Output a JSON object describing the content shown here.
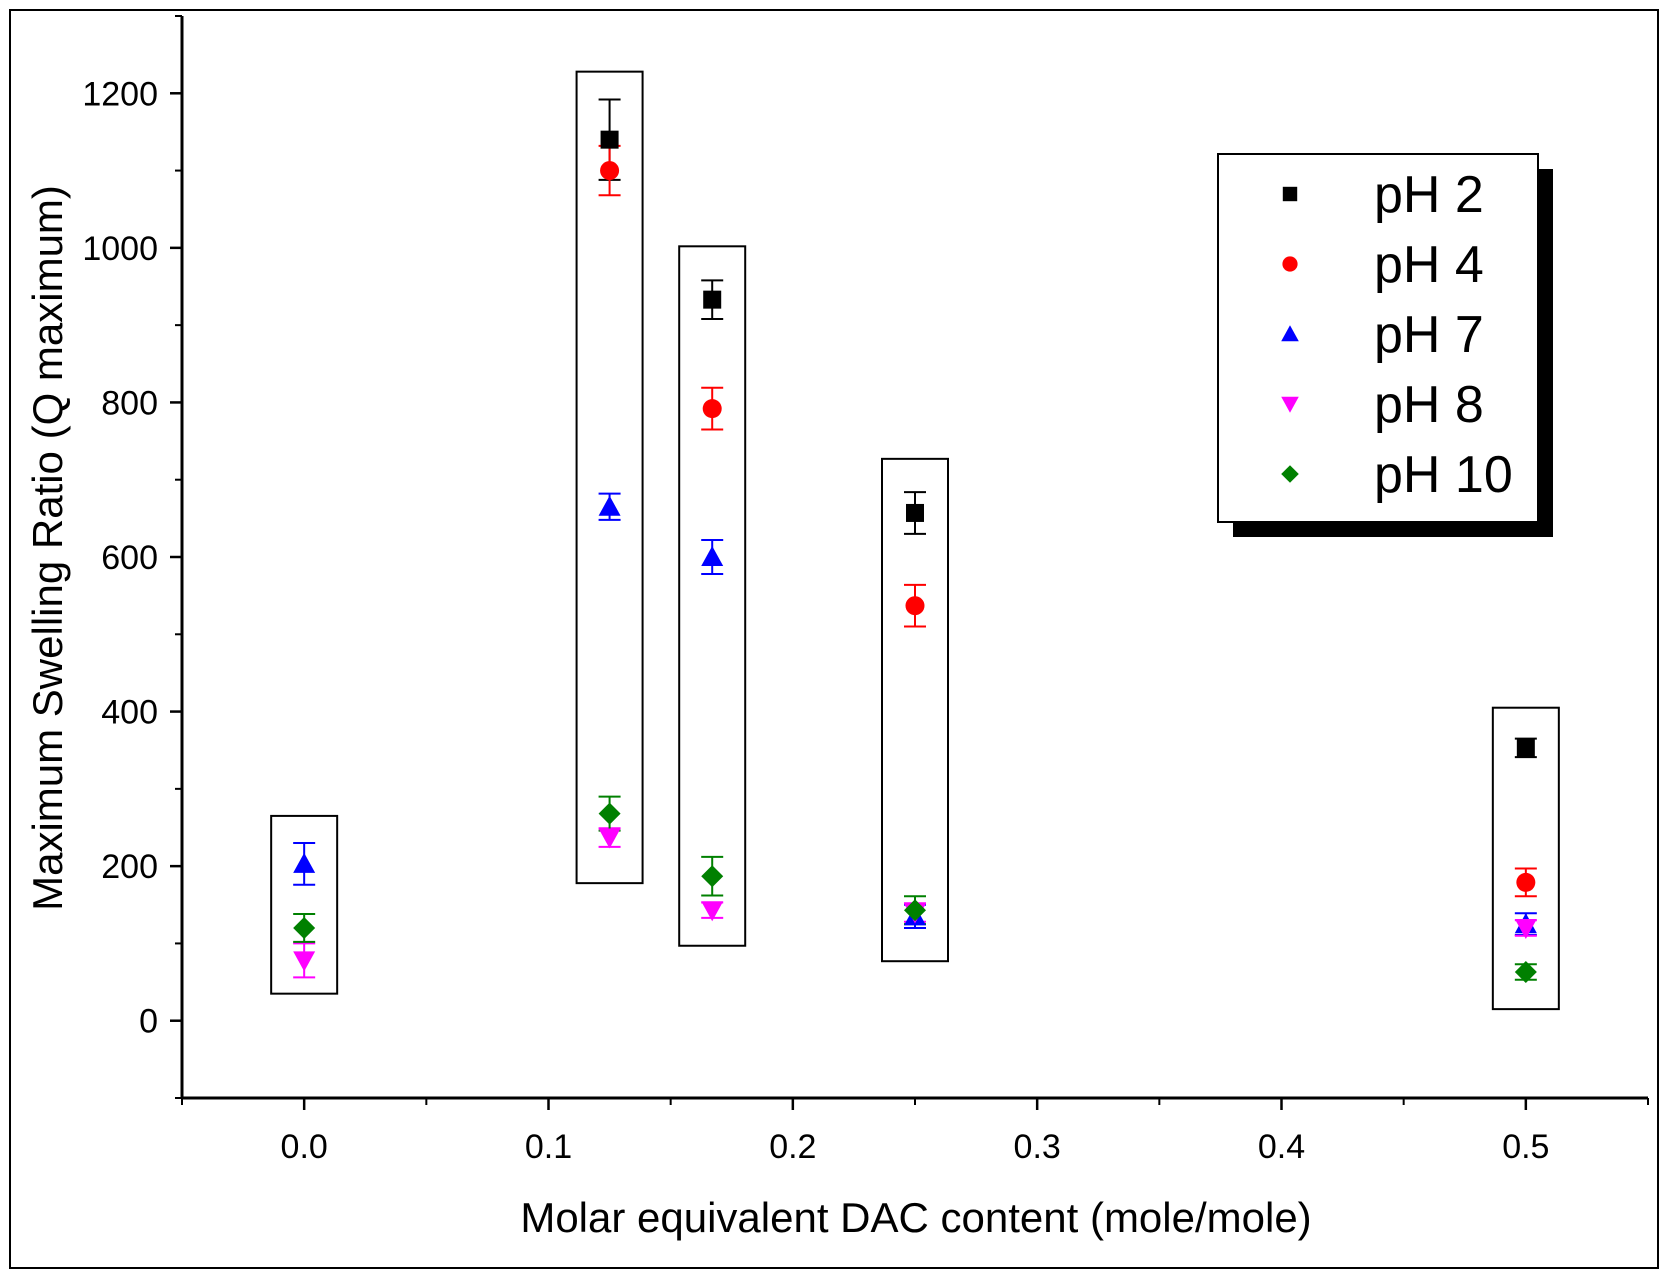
{
  "chart_data": {
    "type": "scatter",
    "xlabel": "Molar equivalent DAC content (mole/mole)",
    "ylabel": "Maximum Swelling Ratio (Q maximum)",
    "xlim": [
      -0.05,
      0.55
    ],
    "ylim": [
      -100,
      1300
    ],
    "x_ticks": [
      {
        "value": 0.0,
        "label": "0.0"
      },
      {
        "value": 0.1,
        "label": "0.1"
      },
      {
        "value": 0.2,
        "label": "0.2"
      },
      {
        "value": 0.3,
        "label": "0.3"
      },
      {
        "value": 0.4,
        "label": "0.4"
      },
      {
        "value": 0.5,
        "label": "0.5"
      }
    ],
    "y_ticks": [
      {
        "value": 0,
        "label": "0"
      },
      {
        "value": 200,
        "label": "200"
      },
      {
        "value": 400,
        "label": "400"
      },
      {
        "value": 600,
        "label": "600"
      },
      {
        "value": 800,
        "label": "800"
      },
      {
        "value": 1000,
        "label": "1000"
      },
      {
        "value": 1200,
        "label": "1200"
      }
    ],
    "series": [
      {
        "name": "pH 2",
        "marker": "square",
        "color": "#000000",
        "points": [
          {
            "x": 0.125,
            "y": 1140,
            "err": 52
          },
          {
            "x": 0.167,
            "y": 933,
            "err": 25
          },
          {
            "x": 0.25,
            "y": 657,
            "err": 27
          },
          {
            "x": 0.5,
            "y": 353,
            "err": 12
          }
        ]
      },
      {
        "name": "pH 4",
        "marker": "circle",
        "color": "#ff0000",
        "points": [
          {
            "x": 0.125,
            "y": 1100,
            "err": 32
          },
          {
            "x": 0.167,
            "y": 792,
            "err": 27
          },
          {
            "x": 0.25,
            "y": 537,
            "err": 27
          },
          {
            "x": 0.5,
            "y": 179,
            "err": 18
          }
        ]
      },
      {
        "name": "pH 7",
        "marker": "triangle-up",
        "color": "#0000ff",
        "points": [
          {
            "x": 0.0,
            "y": 203,
            "err": 27
          },
          {
            "x": 0.125,
            "y": 665,
            "err": 17
          },
          {
            "x": 0.167,
            "y": 600,
            "err": 22
          },
          {
            "x": 0.25,
            "y": 135,
            "err": 15
          },
          {
            "x": 0.5,
            "y": 125,
            "err": 14
          }
        ]
      },
      {
        "name": "pH 8",
        "marker": "triangle-down",
        "color": "#ff00ff",
        "points": [
          {
            "x": 0.0,
            "y": 78,
            "err": 22
          },
          {
            "x": 0.125,
            "y": 237,
            "err": 12
          },
          {
            "x": 0.167,
            "y": 143,
            "err": 10
          },
          {
            "x": 0.25,
            "y": 140,
            "err": 12
          },
          {
            "x": 0.5,
            "y": 120,
            "err": 10
          }
        ]
      },
      {
        "name": "pH 10",
        "marker": "diamond",
        "color": "#008000",
        "points": [
          {
            "x": 0.0,
            "y": 120,
            "err": 18
          },
          {
            "x": 0.125,
            "y": 268,
            "err": 22
          },
          {
            "x": 0.167,
            "y": 187,
            "err": 25
          },
          {
            "x": 0.25,
            "y": 143,
            "err": 18
          },
          {
            "x": 0.5,
            "y": 63,
            "err": 10
          }
        ]
      }
    ],
    "group_boxes": [
      {
        "x": 0.0,
        "y_min": 35,
        "y_max": 265
      },
      {
        "x": 0.125,
        "y_min": 178,
        "y_max": 1228
      },
      {
        "x": 0.167,
        "y_min": 97,
        "y_max": 1002
      },
      {
        "x": 0.25,
        "y_min": 77,
        "y_max": 727
      },
      {
        "x": 0.5,
        "y_min": 15,
        "y_max": 405
      }
    ],
    "legend_position": "top-right"
  }
}
